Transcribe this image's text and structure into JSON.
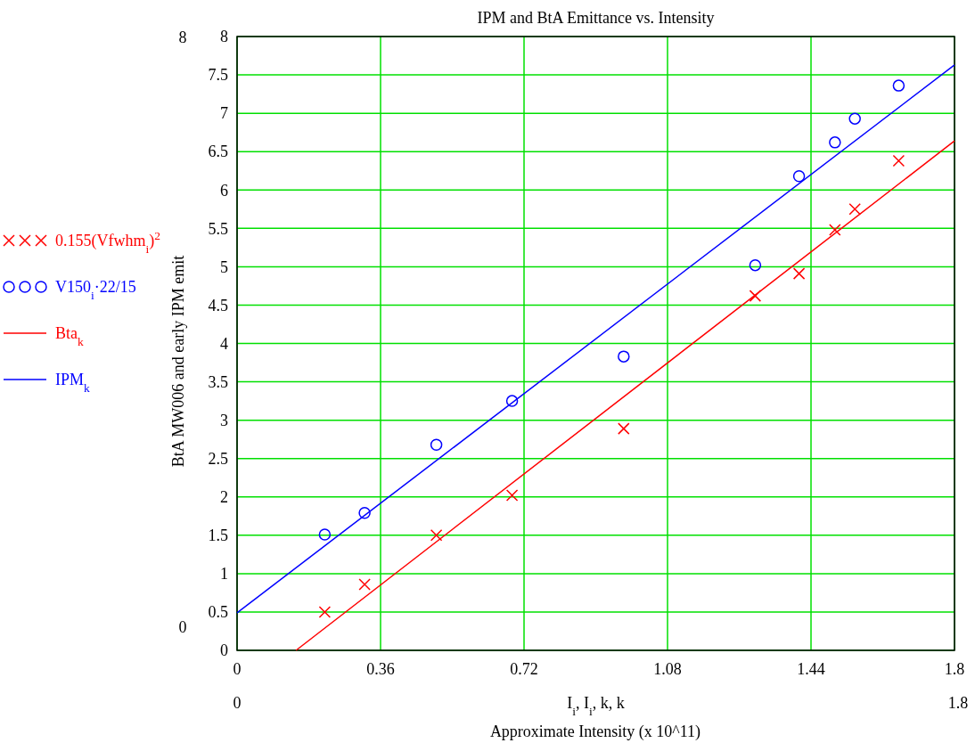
{
  "chart_data": {
    "type": "scatter",
    "title": "IPM and BtA Emittance vs. Intensity",
    "xlabel": "I$_{i}$, I$_{i}$, k, k",
    "ylabel": "BtA MW006 and early IPM emit",
    "annotations": [
      "8",
      "0",
      "0",
      "1.8",
      "Approximate Intensity (x 10^11)"
    ],
    "x": [
      0.22,
      0.32,
      0.5,
      0.69,
      0.97,
      1.3,
      1.41,
      1.5,
      1.55,
      1.66
    ],
    "series": [
      {
        "name": "0.155(Vfwhm$_{i}$)$^{2}$",
        "marker": "cross",
        "color": "#ff0000",
        "values": [
          0.5,
          0.86,
          1.5,
          2.02,
          2.89,
          4.62,
          4.91,
          5.48,
          5.75,
          6.38
        ]
      },
      {
        "name": "V150$_{i}$·22/15",
        "marker": "circle",
        "color": "#0000ff",
        "values": [
          1.51,
          1.79,
          2.68,
          3.25,
          3.83,
          5.02,
          6.18,
          6.62,
          6.93,
          7.36
        ]
      },
      {
        "name": "Bta$_{k}$",
        "type": "line",
        "marker": "none",
        "color": "#ff0000",
        "x": [
          0.148,
          1.8
        ],
        "values": [
          0,
          6.64
        ]
      },
      {
        "name": "IPM$_{k}$",
        "type": "line",
        "marker": "none",
        "color": "#0000ff",
        "x": [
          0,
          1.8
        ],
        "values": [
          0.49,
          7.63
        ]
      }
    ],
    "xlim": [
      0,
      1.8
    ],
    "xticks": [
      0,
      0.36,
      0.72,
      1.08,
      1.44,
      1.8
    ],
    "ylim": [
      0,
      8
    ],
    "yticks": [
      0,
      0.5,
      1,
      1.5,
      2,
      2.5,
      3,
      3.5,
      4,
      4.5,
      5,
      5.5,
      6,
      6.5,
      7,
      7.5,
      8
    ],
    "grid": true,
    "legend": "left"
  }
}
